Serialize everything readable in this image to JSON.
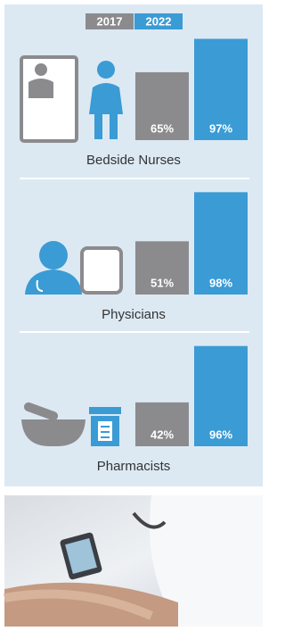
{
  "chart_data": {
    "type": "bar",
    "categories": [
      "Bedside Nurses",
      "Physicians",
      "Pharmacists"
    ],
    "series": [
      {
        "name": "2017",
        "color": "#8b8b8e",
        "values": [
          65,
          51,
          42
        ],
        "value_labels": [
          "65%",
          "51%",
          "42%"
        ]
      },
      {
        "name": "2022",
        "color": "#3a9bd5",
        "values": [
          97,
          98,
          96
        ],
        "value_labels": [
          "97%",
          "98%",
          "96%"
        ]
      }
    ],
    "ylim": [
      0,
      100
    ]
  }
}
